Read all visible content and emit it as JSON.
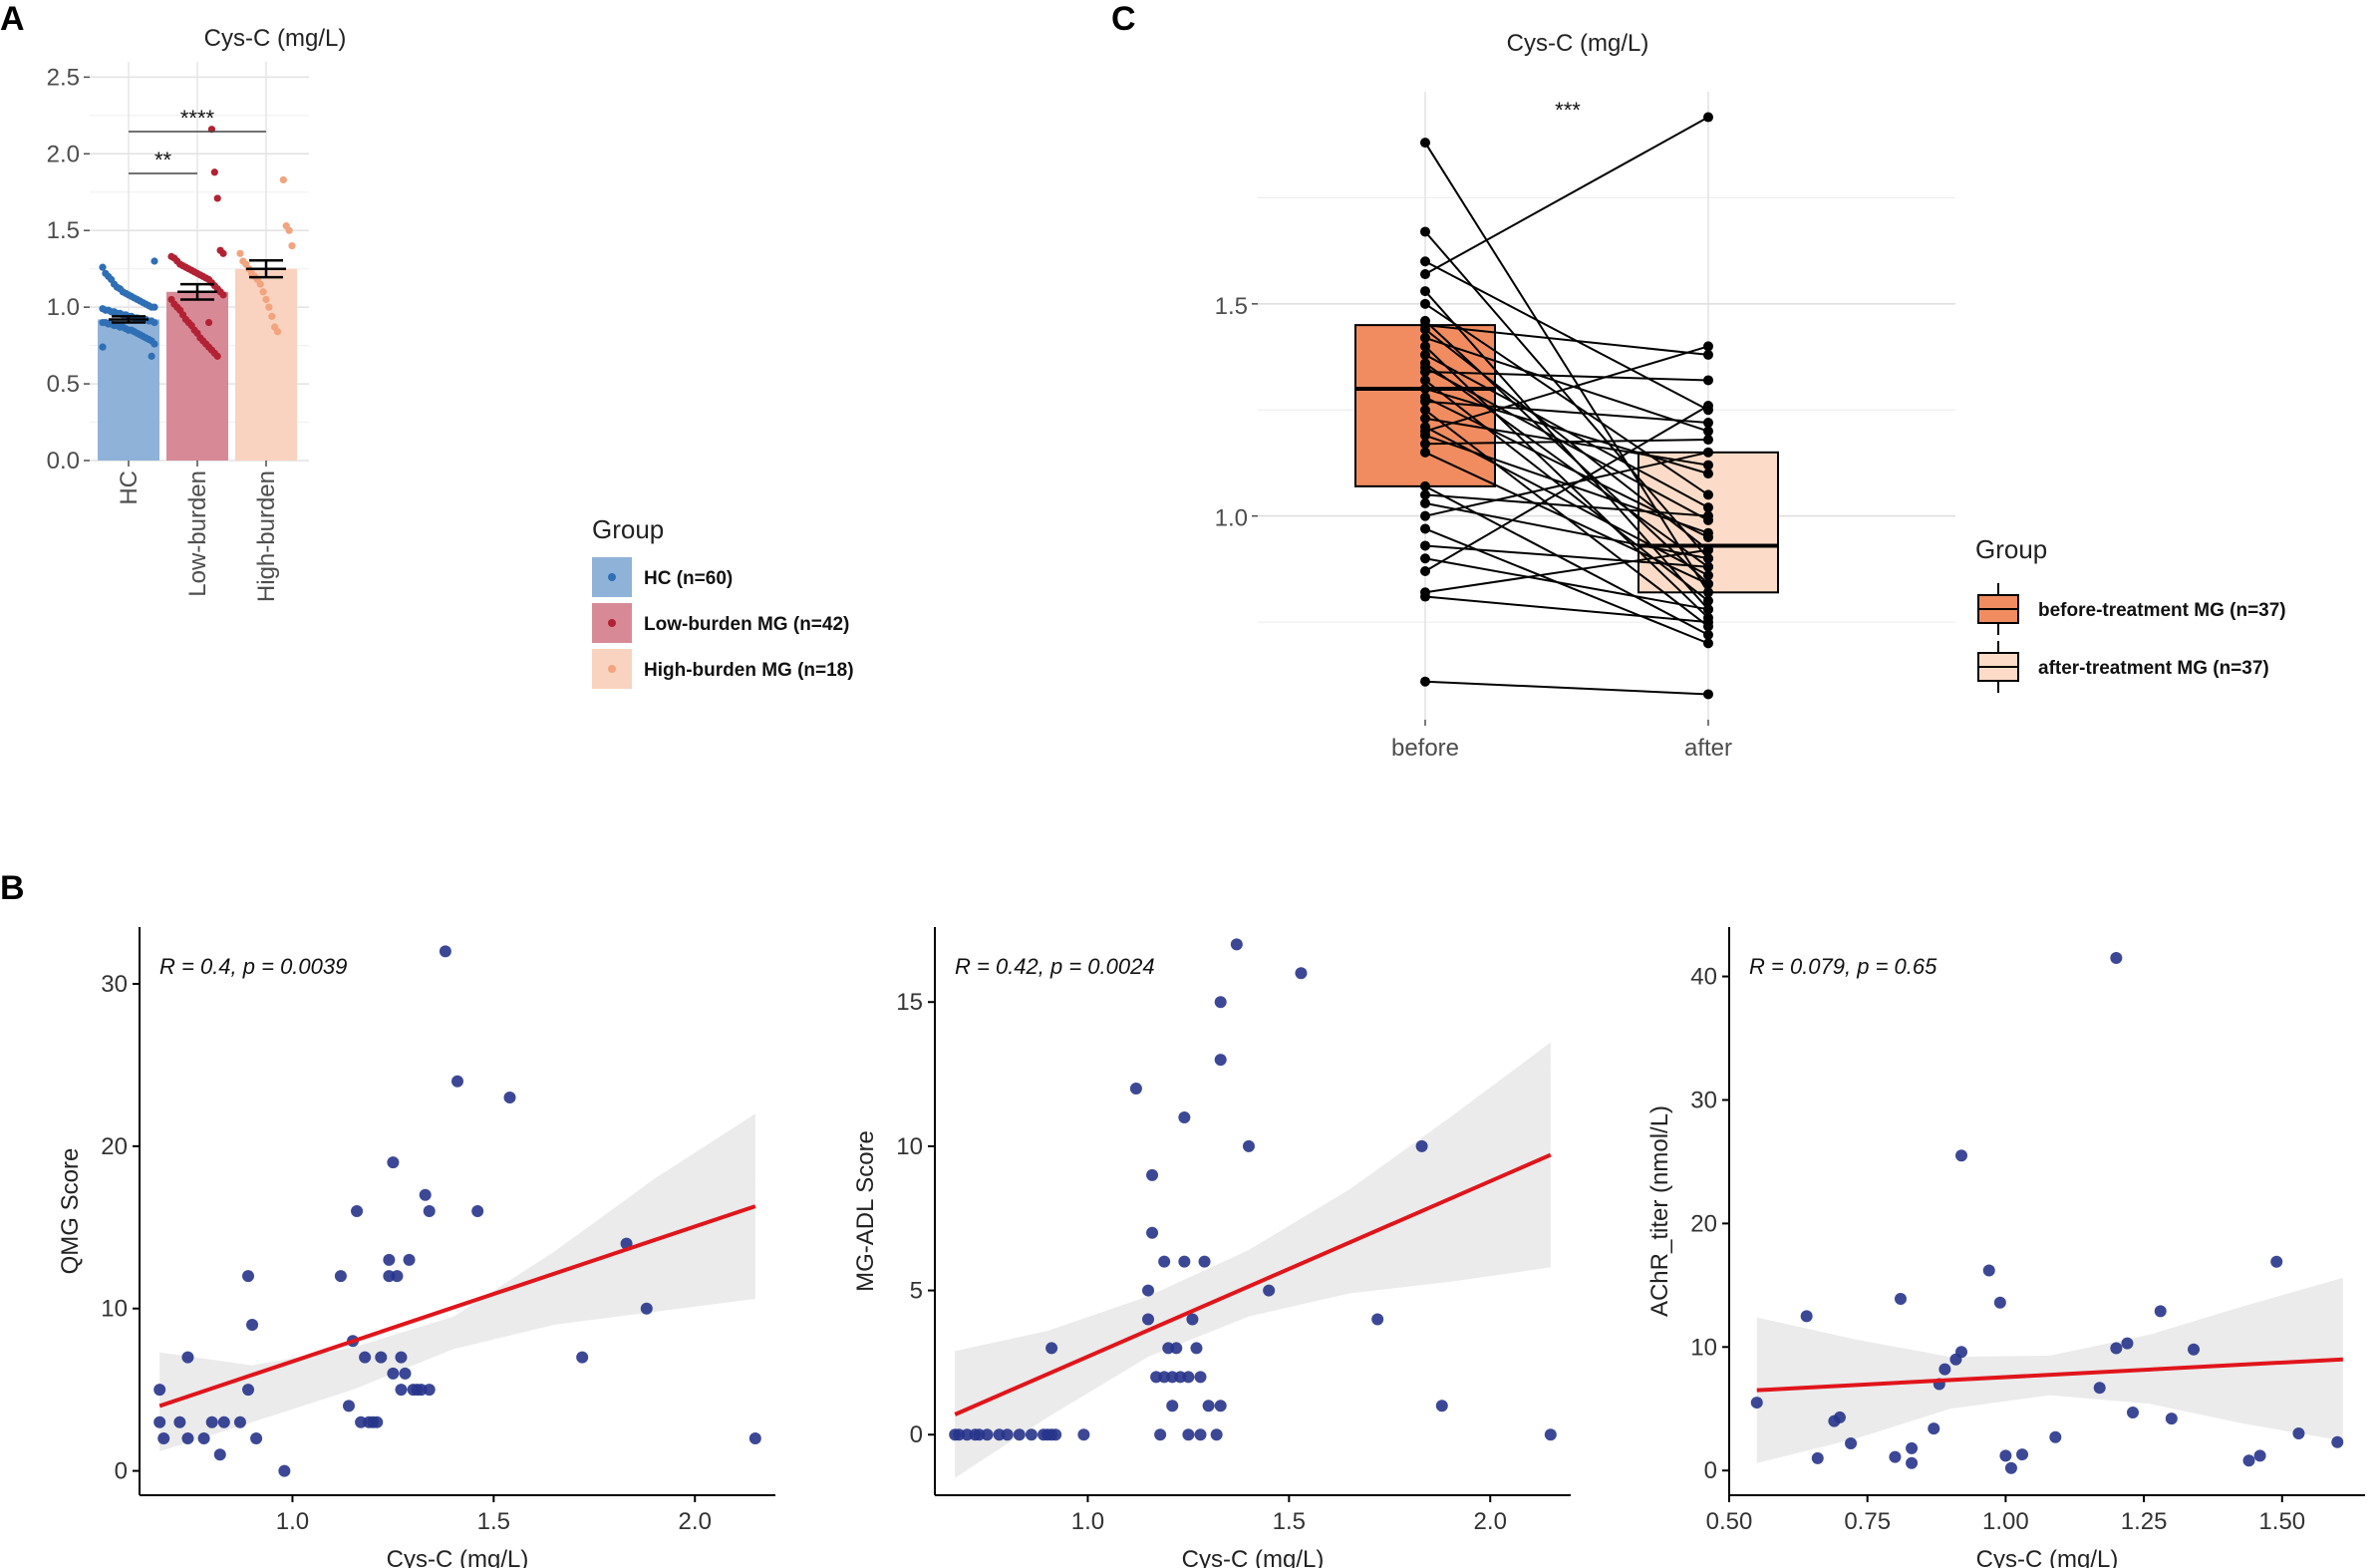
{
  "panels": {
    "A": "A",
    "B": "B",
    "C": "C"
  },
  "chart_data": [
    {
      "id": "A",
      "type": "bar",
      "title": "Cys-C (mg/L)",
      "categories": [
        "HC",
        "Low-burden",
        "High-burden"
      ],
      "values": [
        0.92,
        1.1,
        1.25
      ],
      "errors": [
        0.02,
        0.05,
        0.055
      ],
      "colors": [
        "#8fb2d8",
        "#d78a96",
        "#f9d3bf"
      ],
      "point_colors": [
        "#2e6fb5",
        "#b22234",
        "#f2a37f"
      ],
      "ylim": [
        0,
        2.6
      ],
      "yticks": [
        0.0,
        0.5,
        1.0,
        1.5,
        2.0,
        2.5
      ],
      "ytick_labels": [
        "0.0",
        "0.5",
        "1.0",
        "1.5",
        "2.0",
        "2.5"
      ],
      "points": [
        [
          0.74,
          0.76,
          0.78,
          0.79,
          0.8,
          0.81,
          0.82,
          0.83,
          0.84,
          0.85,
          0.85,
          0.86,
          0.87,
          0.87,
          0.88,
          0.88,
          0.89,
          0.89,
          0.9,
          0.9,
          0.9,
          0.91,
          0.91,
          0.92,
          0.92,
          0.92,
          0.93,
          0.93,
          0.94,
          0.94,
          0.95,
          0.95,
          0.96,
          0.96,
          0.97,
          0.97,
          0.98,
          0.98,
          0.99,
          1.0,
          1.0,
          1.01,
          1.02,
          1.03,
          1.04,
          1.05,
          1.06,
          1.07,
          1.08,
          1.09,
          1.1,
          1.12,
          1.13,
          1.15,
          1.18,
          1.2,
          1.22,
          1.26,
          1.3,
          0.68
        ],
        [
          0.68,
          0.7,
          0.72,
          0.74,
          0.76,
          0.78,
          0.8,
          0.83,
          0.85,
          0.88,
          0.9,
          0.92,
          0.95,
          0.98,
          1.0,
          1.02,
          1.05,
          1.08,
          1.1,
          1.12,
          1.14,
          1.16,
          1.18,
          1.19,
          1.2,
          1.21,
          1.22,
          1.23,
          1.24,
          1.25,
          1.26,
          1.27,
          1.28,
          1.3,
          1.32,
          1.33,
          1.35,
          1.37,
          1.71,
          1.88,
          2.16,
          0.9
        ],
        [
          0.84,
          0.87,
          0.94,
          1.0,
          1.05,
          1.1,
          1.15,
          1.18,
          1.2,
          1.22,
          1.25,
          1.28,
          1.3,
          1.35,
          1.4,
          1.5,
          1.53,
          1.83
        ]
      ],
      "comparisons": [
        {
          "from": "HC",
          "to": "Low-burden",
          "label": "**"
        },
        {
          "from": "HC",
          "to": "High-burden",
          "label": "****"
        }
      ],
      "legend": {
        "title": "Group",
        "entries": [
          "HC (n=60)",
          "Low-burden MG (n=42)",
          "High-burden MG (n=18)"
        ]
      }
    },
    {
      "id": "C",
      "type": "box",
      "title": "Cys-C (mg/L)",
      "categories": [
        "before",
        "after"
      ],
      "yticks": [
        1.0,
        1.5
      ],
      "ytick_labels": [
        "1.0",
        "1.5"
      ],
      "ylim": [
        0.52,
        2.0
      ],
      "boxes": [
        {
          "q1": 1.07,
          "median": 1.3,
          "q3": 1.45,
          "color": "#f08c60"
        },
        {
          "q1": 0.82,
          "median": 0.93,
          "q3": 1.15,
          "color": "#fcdcc8"
        }
      ],
      "pairs": [
        [
          1.88,
          0.82
        ],
        [
          1.67,
          0.9
        ],
        [
          1.6,
          1.25
        ],
        [
          1.57,
          1.94
        ],
        [
          1.53,
          0.78
        ],
        [
          1.5,
          1.05
        ],
        [
          1.46,
          0.84
        ],
        [
          1.45,
          1.38
        ],
        [
          1.44,
          0.92
        ],
        [
          1.42,
          1.2
        ],
        [
          1.4,
          0.76
        ],
        [
          1.38,
          1.02
        ],
        [
          1.36,
          0.88
        ],
        [
          1.34,
          1.32
        ],
        [
          1.32,
          0.8
        ],
        [
          1.3,
          1.1
        ],
        [
          1.28,
          0.95
        ],
        [
          1.27,
          1.22
        ],
        [
          1.25,
          0.74
        ],
        [
          1.23,
          1.12
        ],
        [
          1.21,
          0.86
        ],
        [
          1.2,
          1.4
        ],
        [
          1.19,
          0.96
        ],
        [
          1.17,
          1.18
        ],
        [
          1.15,
          0.84
        ],
        [
          1.07,
          0.72
        ],
        [
          1.05,
          1.0
        ],
        [
          1.03,
          0.9
        ],
        [
          1.0,
          1.15
        ],
        [
          0.97,
          0.7
        ],
        [
          0.93,
          0.88
        ],
        [
          0.9,
          0.78
        ],
        [
          0.87,
          1.26
        ],
        [
          0.82,
          0.92
        ],
        [
          0.81,
          0.75
        ],
        [
          0.61,
          0.58
        ],
        [
          1.35,
          0.99
        ]
      ],
      "sig_label": "***",
      "legend": {
        "title": "Group",
        "entries": [
          "before-treatment MG (n=37)",
          "after-treatment MG (n=37)"
        ]
      }
    },
    {
      "id": "B1",
      "type": "scatter",
      "xlabel": "Cys-C (mg/L)",
      "ylabel": "QMG Score",
      "xlim": [
        0.62,
        2.2
      ],
      "ylim": [
        -1.5,
        33.5
      ],
      "xticks": [
        1.0,
        1.5,
        2.0
      ],
      "xtick_labels": [
        "1.0",
        "1.5",
        "2.0"
      ],
      "yticks": [
        0,
        10,
        20,
        30
      ],
      "ytick_labels": [
        "0",
        "10",
        "20",
        "30"
      ],
      "annotation": "R = 0.4, p = 0.0039",
      "points": [
        [
          0.67,
          5
        ],
        [
          0.67,
          3
        ],
        [
          0.68,
          2
        ],
        [
          0.72,
          3
        ],
        [
          0.74,
          2
        ],
        [
          0.74,
          7
        ],
        [
          0.78,
          2
        ],
        [
          0.8,
          3
        ],
        [
          0.82,
          1
        ],
        [
          0.83,
          3
        ],
        [
          0.87,
          3
        ],
        [
          0.89,
          12
        ],
        [
          0.89,
          5
        ],
        [
          0.9,
          9
        ],
        [
          0.91,
          2
        ],
        [
          0.98,
          0
        ],
        [
          1.12,
          12
        ],
        [
          1.14,
          4
        ],
        [
          1.15,
          8
        ],
        [
          1.16,
          16
        ],
        [
          1.17,
          3
        ],
        [
          1.18,
          7
        ],
        [
          1.19,
          3
        ],
        [
          1.2,
          3
        ],
        [
          1.21,
          3
        ],
        [
          1.22,
          7
        ],
        [
          1.24,
          13
        ],
        [
          1.24,
          12
        ],
        [
          1.25,
          19
        ],
        [
          1.25,
          6
        ],
        [
          1.26,
          12
        ],
        [
          1.27,
          5
        ],
        [
          1.27,
          7
        ],
        [
          1.28,
          6
        ],
        [
          1.29,
          13
        ],
        [
          1.3,
          5
        ],
        [
          1.31,
          5
        ],
        [
          1.32,
          5
        ],
        [
          1.33,
          17
        ],
        [
          1.34,
          16
        ],
        [
          1.34,
          5
        ],
        [
          1.38,
          32
        ],
        [
          1.41,
          24
        ],
        [
          1.46,
          16
        ],
        [
          1.54,
          23
        ],
        [
          1.72,
          7
        ],
        [
          1.83,
          14
        ],
        [
          1.88,
          10
        ],
        [
          2.15,
          2
        ]
      ],
      "fit": {
        "x": [
          0.67,
          2.15
        ],
        "y": [
          4.0,
          16.3
        ]
      },
      "band_upper": [
        7.3,
        6.5,
        7.6,
        9.5,
        13.5,
        18.0,
        22.0
      ],
      "band_lower": [
        1.2,
        3.0,
        5.0,
        7.5,
        9.0,
        9.8,
        10.6
      ],
      "band_x": [
        0.67,
        0.9,
        1.15,
        1.4,
        1.65,
        1.9,
        2.15
      ]
    },
    {
      "id": "B2",
      "type": "scatter",
      "xlabel": "Cys-C (mg/L)",
      "ylabel": "MG-ADL Score",
      "xlim": [
        0.62,
        2.2
      ],
      "ylim": [
        -2.1,
        17.6
      ],
      "xticks": [
        1.0,
        1.5,
        2.0
      ],
      "xtick_labels": [
        "1.0",
        "1.5",
        "2.0"
      ],
      "yticks": [
        0,
        5,
        10,
        15
      ],
      "ytick_labels": [
        "0",
        "5",
        "10",
        "15"
      ],
      "annotation": "R = 0.42, p = 0.0024",
      "points": [
        [
          0.67,
          0
        ],
        [
          0.68,
          0
        ],
        [
          0.7,
          0
        ],
        [
          0.72,
          0
        ],
        [
          0.73,
          0
        ],
        [
          0.75,
          0
        ],
        [
          0.78,
          0
        ],
        [
          0.8,
          0
        ],
        [
          0.83,
          0
        ],
        [
          0.86,
          0
        ],
        [
          0.89,
          0
        ],
        [
          0.9,
          0
        ],
        [
          0.91,
          3
        ],
        [
          0.91,
          0
        ],
        [
          0.92,
          0
        ],
        [
          0.99,
          0
        ],
        [
          1.12,
          12
        ],
        [
          1.15,
          5
        ],
        [
          1.15,
          4
        ],
        [
          1.16,
          9
        ],
        [
          1.16,
          7
        ],
        [
          1.17,
          2
        ],
        [
          1.18,
          0
        ],
        [
          1.19,
          6
        ],
        [
          1.19,
          2
        ],
        [
          1.2,
          3
        ],
        [
          1.21,
          2
        ],
        [
          1.21,
          1
        ],
        [
          1.22,
          3
        ],
        [
          1.23,
          2
        ],
        [
          1.24,
          11
        ],
        [
          1.24,
          6
        ],
        [
          1.25,
          0
        ],
        [
          1.25,
          2
        ],
        [
          1.26,
          4
        ],
        [
          1.27,
          3
        ],
        [
          1.28,
          2
        ],
        [
          1.28,
          0
        ],
        [
          1.29,
          6
        ],
        [
          1.3,
          1
        ],
        [
          1.32,
          0
        ],
        [
          1.33,
          15
        ],
        [
          1.33,
          13
        ],
        [
          1.33,
          1
        ],
        [
          1.37,
          17
        ],
        [
          1.4,
          10
        ],
        [
          1.45,
          5
        ],
        [
          1.53,
          16
        ],
        [
          1.72,
          4
        ],
        [
          1.83,
          10
        ],
        [
          1.88,
          1
        ],
        [
          2.15,
          0
        ]
      ],
      "fit": {
        "x": [
          0.67,
          2.15
        ],
        "y": [
          0.7,
          9.7
        ]
      },
      "band_upper": [
        2.9,
        3.6,
        4.8,
        6.4,
        8.5,
        11.0,
        13.6
      ],
      "band_lower": [
        -1.5,
        0.6,
        2.7,
        4.1,
        4.9,
        5.3,
        5.8
      ],
      "band_x": [
        0.67,
        0.9,
        1.15,
        1.4,
        1.65,
        1.9,
        2.15
      ]
    },
    {
      "id": "B3",
      "type": "scatter",
      "xlabel": "Cys-C (mg/L)",
      "ylabel": "AChR_titer (nmol/L)",
      "xlim": [
        0.5,
        1.65
      ],
      "ylim": [
        -2.0,
        44.0
      ],
      "xticks": [
        0.5,
        0.75,
        1.0,
        1.25,
        1.5
      ],
      "xtick_labels": [
        "0.50",
        "0.75",
        "1.00",
        "1.25",
        "1.50"
      ],
      "yticks": [
        0,
        10,
        20,
        30,
        40
      ],
      "ytick_labels": [
        "0",
        "10",
        "20",
        "30",
        "40"
      ],
      "annotation": "R = 0.079, p = 0.65",
      "points": [
        [
          0.55,
          5.5
        ],
        [
          0.64,
          12.5
        ],
        [
          0.66,
          1
        ],
        [
          0.69,
          4
        ],
        [
          0.7,
          4.3
        ],
        [
          0.72,
          2.2
        ],
        [
          0.8,
          1.1
        ],
        [
          0.81,
          13.9
        ],
        [
          0.83,
          0.6
        ],
        [
          0.83,
          1.8
        ],
        [
          0.87,
          3.4
        ],
        [
          0.88,
          7
        ],
        [
          0.89,
          8.2
        ],
        [
          0.91,
          9
        ],
        [
          0.92,
          9.6
        ],
        [
          0.92,
          25.5
        ],
        [
          0.97,
          16.2
        ],
        [
          0.99,
          13.6
        ],
        [
          1.0,
          1.2
        ],
        [
          1.01,
          0.2
        ],
        [
          1.03,
          1.3
        ],
        [
          1.09,
          2.7
        ],
        [
          1.17,
          6.7
        ],
        [
          1.2,
          41.5
        ],
        [
          1.2,
          9.9
        ],
        [
          1.22,
          10.3
        ],
        [
          1.23,
          4.7
        ],
        [
          1.28,
          12.9
        ],
        [
          1.3,
          4.2
        ],
        [
          1.34,
          9.8
        ],
        [
          1.44,
          0.8
        ],
        [
          1.46,
          1.2
        ],
        [
          1.49,
          16.9
        ],
        [
          1.53,
          3
        ],
        [
          1.6,
          2.3
        ]
      ],
      "fit": {
        "x": [
          0.55,
          1.61
        ],
        "y": [
          6.5,
          9.0
        ]
      },
      "band_upper": [
        12.4,
        10.6,
        9.2,
        9.3,
        11.0,
        13.3,
        15.6
      ],
      "band_lower": [
        0.6,
        2.6,
        5.0,
        6.1,
        5.4,
        3.8,
        2.4
      ],
      "band_x": [
        0.55,
        0.73,
        0.9,
        1.08,
        1.26,
        1.43,
        1.61
      ]
    }
  ]
}
